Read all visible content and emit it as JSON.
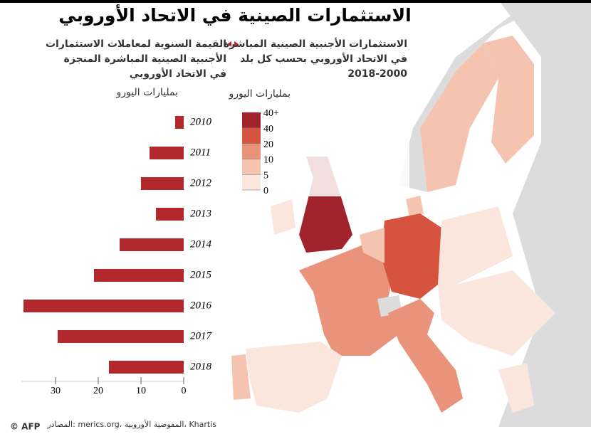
{
  "title": "الاستثمارات الصينية في الاتحاد الأوروبي",
  "chart_data": {
    "type": "bar",
    "orientation": "horizontal",
    "subtitle": [
      "القيمة السنوية لمعاملات الاستثمارات",
      "الأجنبية الصينية المباشرة المنجزة",
      "في الاتحاد الأوروبي"
    ],
    "unit": "بمليارات اليورو",
    "categories": [
      "2010",
      "2011",
      "2012",
      "2013",
      "2014",
      "2015",
      "2016",
      "2017",
      "2018"
    ],
    "values": [
      2,
      8,
      10,
      6.5,
      15,
      21,
      37.5,
      29.5,
      17.5
    ],
    "color": "#b3282d",
    "xlim": [
      0,
      38
    ],
    "xticks": [
      0,
      10,
      20,
      30
    ],
    "reversed": true
  },
  "map_legend": {
    "title": [
      "الاستثمارات الأجنبية الصينية المباشرة",
      "في الاتحاد الأوروبي بحسب كل بلد",
      "2018-2000"
    ],
    "unit": "بمليارات اليورو",
    "labels": [
      "40+",
      "40",
      "20",
      "10",
      "5",
      "0"
    ],
    "colors": [
      "#a1232b",
      "#d5533f",
      "#e9937a",
      "#f4c4b1",
      "#fbe6dd"
    ]
  },
  "source": "المصادر: merics.org، المفوضية الأوروبية، Khartis",
  "credit": "© AFP"
}
